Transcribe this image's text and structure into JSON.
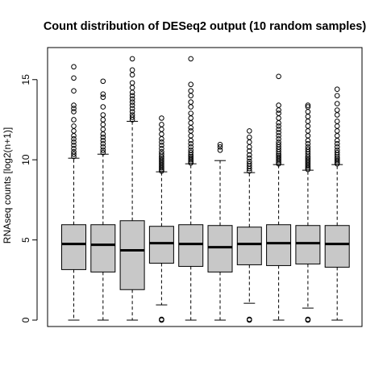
{
  "chart_data": {
    "type": "boxplot",
    "title": "Count distribution of DESeq2 output (10 random samples)",
    "xlabel": "",
    "ylabel": "RNAseq counts [log2(n+1)]",
    "ylim": [
      -0.4,
      17
    ],
    "y_ticks": [
      0,
      5,
      10,
      15
    ],
    "box_color": "#c8c8c8",
    "grid": false,
    "legend": "none",
    "boxes": [
      {
        "q1": 3.15,
        "median": 4.75,
        "q3": 5.95,
        "whisker_low": 0,
        "whisker_high": 10.1,
        "outliers_high": [
          10.2,
          10.35,
          10.5,
          10.7,
          10.9,
          11.1,
          11.3,
          11.5,
          11.8,
          12.1,
          12.5,
          13.0,
          13.2,
          13.4,
          14.3,
          15.1,
          15.8
        ],
        "outliers_low": []
      },
      {
        "q1": 3.0,
        "median": 4.7,
        "q3": 5.95,
        "whisker_low": 0,
        "whisker_high": 10.35,
        "outliers_high": [
          10.45,
          10.6,
          10.8,
          11.0,
          11.2,
          11.4,
          11.6,
          11.9,
          12.2,
          12.5,
          12.8,
          13.3,
          13.9,
          14.1,
          14.9
        ],
        "outliers_low": []
      },
      {
        "q1": 1.9,
        "median": 4.35,
        "q3": 6.2,
        "whisker_low": 0,
        "whisker_high": 12.4,
        "outliers_high": [
          12.5,
          12.65,
          12.8,
          13.0,
          13.2,
          13.4,
          13.6,
          13.8,
          14.0,
          14.2,
          14.5,
          14.8,
          15.3,
          15.6,
          16.3
        ],
        "outliers_low": []
      },
      {
        "q1": 3.55,
        "median": 4.8,
        "q3": 5.85,
        "whisker_low": 0.95,
        "whisker_high": 9.25,
        "outliers_high": [
          9.3,
          9.4,
          9.5,
          9.6,
          9.7,
          9.8,
          9.9,
          10.0,
          10.1,
          10.2,
          10.35,
          10.5,
          10.7,
          10.9,
          11.1,
          11.3,
          11.6,
          11.9,
          12.2,
          12.6
        ],
        "outliers_low": [
          0,
          0.05
        ]
      },
      {
        "q1": 3.35,
        "median": 4.75,
        "q3": 5.95,
        "whisker_low": 0,
        "whisker_high": 9.75,
        "outliers_high": [
          9.8,
          9.9,
          10.0,
          10.1,
          10.2,
          10.3,
          10.45,
          10.6,
          10.8,
          11.0,
          11.2,
          11.5,
          11.8,
          12.0,
          12.3,
          12.6,
          12.9,
          13.3,
          13.6,
          14.0,
          14.3,
          14.7,
          16.3
        ],
        "outliers_low": []
      },
      {
        "q1": 3.0,
        "median": 4.55,
        "q3": 5.9,
        "whisker_low": 0,
        "whisker_high": 9.95,
        "outliers_high": [
          10.6,
          10.8,
          10.95
        ],
        "outliers_low": []
      },
      {
        "q1": 3.45,
        "median": 4.75,
        "q3": 5.8,
        "whisker_low": 1.05,
        "whisker_high": 9.2,
        "outliers_high": [
          9.3,
          9.45,
          9.6,
          9.75,
          9.9,
          10.1,
          10.3,
          10.55,
          10.8,
          11.1,
          11.4,
          11.8
        ],
        "outliers_low": [
          0,
          0.05
        ]
      },
      {
        "q1": 3.4,
        "median": 4.8,
        "q3": 5.95,
        "whisker_low": 0,
        "whisker_high": 9.7,
        "outliers_high": [
          9.75,
          9.85,
          9.95,
          10.05,
          10.15,
          10.25,
          10.35,
          10.5,
          10.65,
          10.8,
          10.95,
          11.1,
          11.3,
          11.5,
          11.7,
          11.9,
          12.1,
          12.3,
          12.6,
          12.9,
          13.1,
          13.4,
          15.2
        ],
        "outliers_low": []
      },
      {
        "q1": 3.5,
        "median": 4.8,
        "q3": 5.9,
        "whisker_low": 0.75,
        "whisker_high": 9.35,
        "outliers_high": [
          9.4,
          9.5,
          9.6,
          9.7,
          9.8,
          9.9,
          10.0,
          10.1,
          10.2,
          10.35,
          10.5,
          10.65,
          10.8,
          11.0,
          11.2,
          11.5,
          11.8,
          12.1,
          12.4,
          12.7,
          13.0,
          13.3,
          13.4
        ],
        "outliers_low": [
          0,
          0.05
        ]
      },
      {
        "q1": 3.3,
        "median": 4.75,
        "q3": 5.9,
        "whisker_low": 0,
        "whisker_high": 9.7,
        "outliers_high": [
          9.75,
          9.85,
          9.95,
          10.05,
          10.15,
          10.3,
          10.45,
          10.6,
          10.8,
          11.0,
          11.2,
          11.5,
          11.8,
          12.1,
          12.4,
          12.8,
          13.1,
          13.5,
          14.0,
          14.4
        ],
        "outliers_low": []
      }
    ]
  }
}
